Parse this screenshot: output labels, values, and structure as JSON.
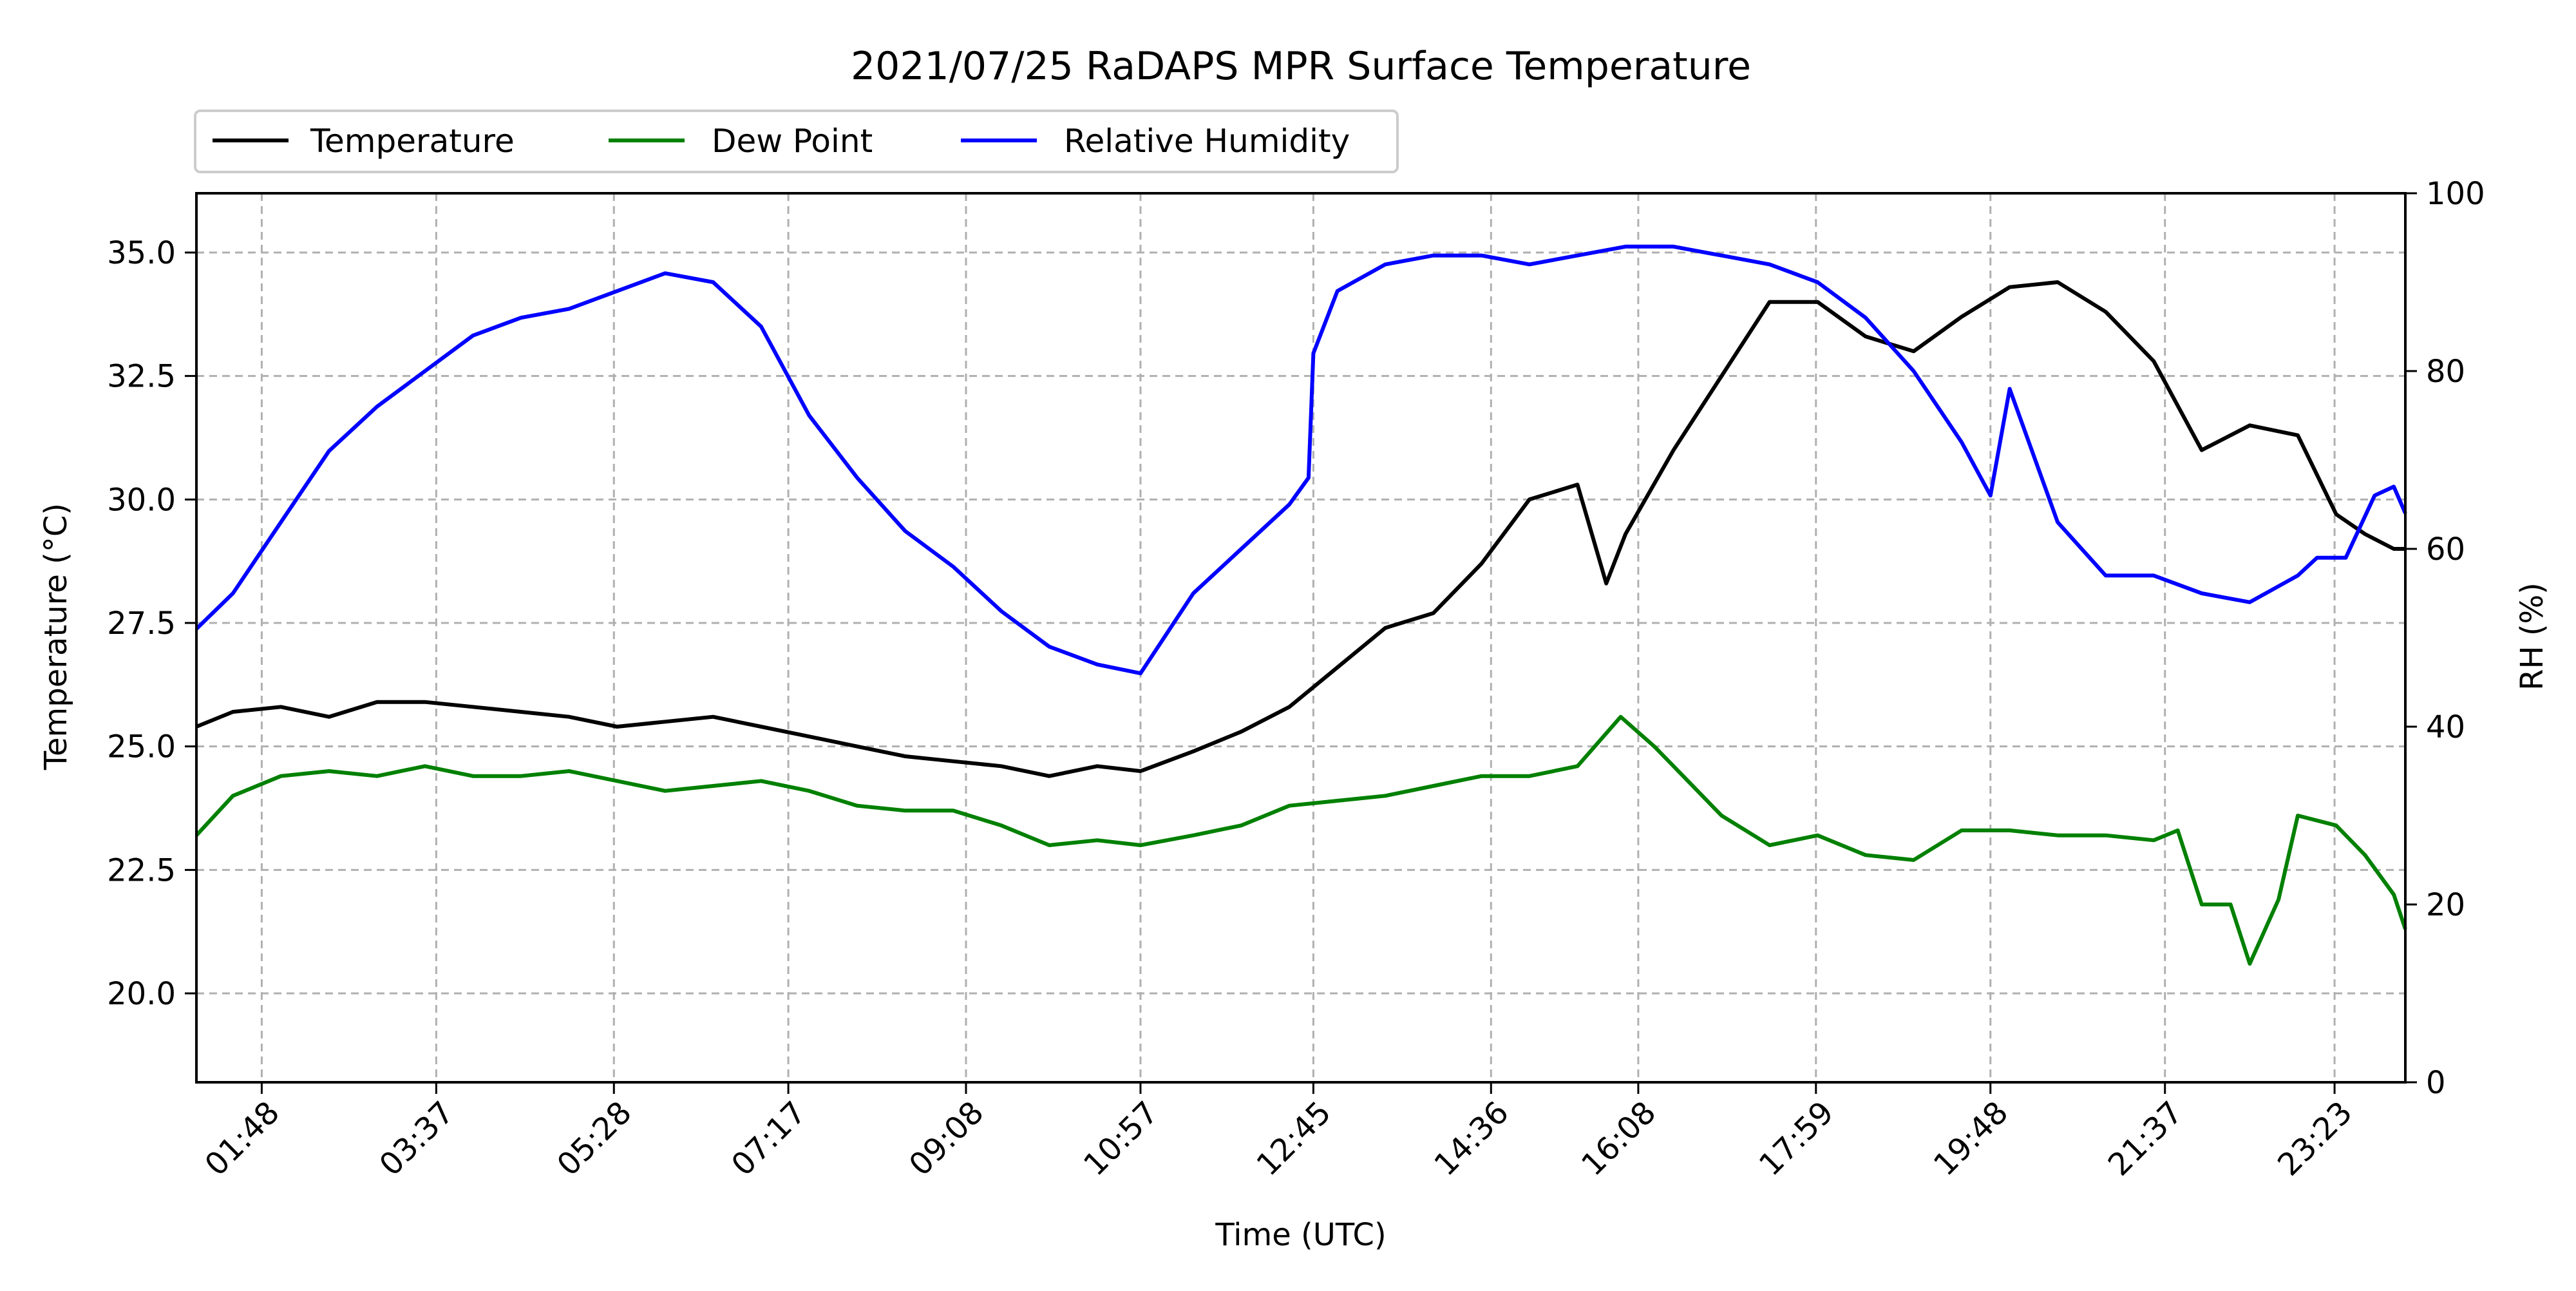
{
  "chart_data": {
    "type": "line",
    "title": "2021/07/25 RaDAPS MPR Surface Temperature",
    "xlabel": "Time (UTC)",
    "ylabel": "Temperature ($^\\circ$C)",
    "ylabel_display": "Temperature (°C)",
    "y2label": "RH (%)",
    "x_unit": "hours UTC",
    "xlim": [
      1.12,
      24.12
    ],
    "ylim": [
      18.2,
      36.2
    ],
    "y2lim": [
      0,
      100
    ],
    "x_ticks": [
      {
        "x": 1.8,
        "label": "01:48"
      },
      {
        "x": 3.617,
        "label": "03:37"
      },
      {
        "x": 5.467,
        "label": "05:28"
      },
      {
        "x": 7.283,
        "label": "07:17"
      },
      {
        "x": 9.133,
        "label": "09:08"
      },
      {
        "x": 10.95,
        "label": "10:57"
      },
      {
        "x": 12.75,
        "label": "12:45"
      },
      {
        "x": 14.6,
        "label": "14:36"
      },
      {
        "x": 16.133,
        "label": "16:08"
      },
      {
        "x": 17.983,
        "label": "17:59"
      },
      {
        "x": 19.8,
        "label": "19:48"
      },
      {
        "x": 21.617,
        "label": "21:37"
      },
      {
        "x": 23.383,
        "label": "23:23"
      }
    ],
    "y_ticks": [
      20.0,
      22.5,
      25.0,
      27.5,
      30.0,
      32.5,
      35.0
    ],
    "y_tick_labels": [
      "20.0",
      "22.5",
      "25.0",
      "27.5",
      "30.0",
      "32.5",
      "35.0"
    ],
    "y2_ticks": [
      0,
      20,
      40,
      60,
      80,
      100
    ],
    "y2_tick_labels": [
      "0",
      "20",
      "40",
      "60",
      "80",
      "100"
    ],
    "grid": true,
    "legend_placement": "top-left, above plot",
    "series": [
      {
        "name": "Temperature",
        "axis": "left",
        "color": "#000000",
        "x": [
          1.12,
          1.5,
          2.0,
          2.5,
          3.0,
          3.5,
          4.0,
          4.5,
          5.0,
          5.5,
          6.0,
          6.5,
          7.0,
          7.5,
          8.0,
          8.5,
          9.0,
          9.5,
          10.0,
          10.5,
          10.95,
          11.5,
          12.0,
          12.5,
          13.0,
          13.5,
          14.0,
          14.5,
          15.0,
          15.5,
          15.8,
          16.0,
          16.5,
          17.0,
          17.5,
          18.0,
          18.5,
          19.0,
          19.5,
          20.0,
          20.5,
          21.0,
          21.5,
          22.0,
          22.5,
          23.0,
          23.4,
          23.7,
          24.0,
          24.12
        ],
        "y": [
          25.4,
          25.7,
          25.8,
          25.6,
          25.9,
          25.9,
          25.8,
          25.7,
          25.6,
          25.4,
          25.5,
          25.6,
          25.4,
          25.2,
          25.0,
          24.8,
          24.7,
          24.6,
          24.4,
          24.6,
          24.5,
          24.9,
          25.3,
          25.8,
          26.6,
          27.4,
          27.7,
          28.7,
          30.0,
          30.3,
          28.3,
          29.3,
          31.0,
          32.5,
          34.0,
          34.0,
          33.3,
          33.0,
          33.7,
          34.3,
          34.4,
          33.8,
          32.8,
          31.0,
          31.5,
          31.3,
          29.7,
          29.3,
          29.0,
          29.0
        ]
      },
      {
        "name": "Dew Point",
        "axis": "left",
        "color": "#008000",
        "x": [
          1.12,
          1.5,
          2.0,
          2.5,
          3.0,
          3.5,
          4.0,
          4.5,
          5.0,
          5.5,
          6.0,
          6.5,
          7.0,
          7.5,
          8.0,
          8.5,
          9.0,
          9.5,
          10.0,
          10.5,
          10.95,
          11.5,
          12.0,
          12.5,
          13.0,
          13.5,
          14.0,
          14.5,
          15.0,
          15.5,
          15.95,
          16.3,
          16.7,
          17.0,
          17.5,
          18.0,
          18.5,
          19.0,
          19.5,
          20.0,
          20.5,
          21.0,
          21.5,
          21.75,
          22.0,
          22.3,
          22.5,
          22.8,
          23.0,
          23.4,
          23.7,
          24.0,
          24.12
        ],
        "y": [
          23.2,
          24.0,
          24.4,
          24.5,
          24.4,
          24.6,
          24.4,
          24.4,
          24.5,
          24.3,
          24.1,
          24.2,
          24.3,
          24.1,
          23.8,
          23.7,
          23.7,
          23.4,
          23.0,
          23.1,
          23.0,
          23.2,
          23.4,
          23.8,
          23.9,
          24.0,
          24.2,
          24.4,
          24.4,
          24.6,
          25.6,
          25.0,
          24.2,
          23.6,
          23.0,
          23.2,
          22.8,
          22.7,
          23.3,
          23.3,
          23.2,
          23.2,
          23.1,
          23.3,
          21.8,
          21.8,
          20.6,
          21.9,
          23.6,
          23.4,
          22.8,
          22.0,
          21.3
        ]
      },
      {
        "name": "Relative Humidity",
        "axis": "right",
        "color": "#0000ff",
        "x": [
          1.12,
          1.5,
          2.0,
          2.5,
          3.0,
          3.5,
          4.0,
          4.5,
          5.0,
          5.5,
          6.0,
          6.5,
          7.0,
          7.5,
          8.0,
          8.5,
          9.0,
          9.5,
          10.0,
          10.5,
          10.95,
          11.5,
          12.0,
          12.5,
          12.7,
          12.75,
          13.0,
          13.5,
          14.0,
          14.5,
          15.0,
          15.5,
          16.0,
          16.5,
          17.0,
          17.5,
          18.0,
          18.5,
          19.0,
          19.5,
          19.8,
          20.0,
          20.5,
          21.0,
          21.5,
          22.0,
          22.5,
          23.0,
          23.2,
          23.5,
          23.8,
          24.0,
          24.12
        ],
        "y": [
          51,
          55,
          63,
          71,
          76,
          80,
          84,
          86,
          87,
          89,
          91,
          90,
          85,
          75,
          68,
          62,
          58,
          53,
          49,
          47,
          46,
          55,
          60,
          65,
          68,
          82,
          89,
          92,
          93,
          93,
          92,
          93,
          94,
          94,
          93,
          92,
          90,
          86,
          80,
          72,
          66,
          78,
          63,
          57,
          57,
          55,
          54,
          57,
          59,
          59,
          66,
          67,
          64
        ]
      }
    ]
  }
}
